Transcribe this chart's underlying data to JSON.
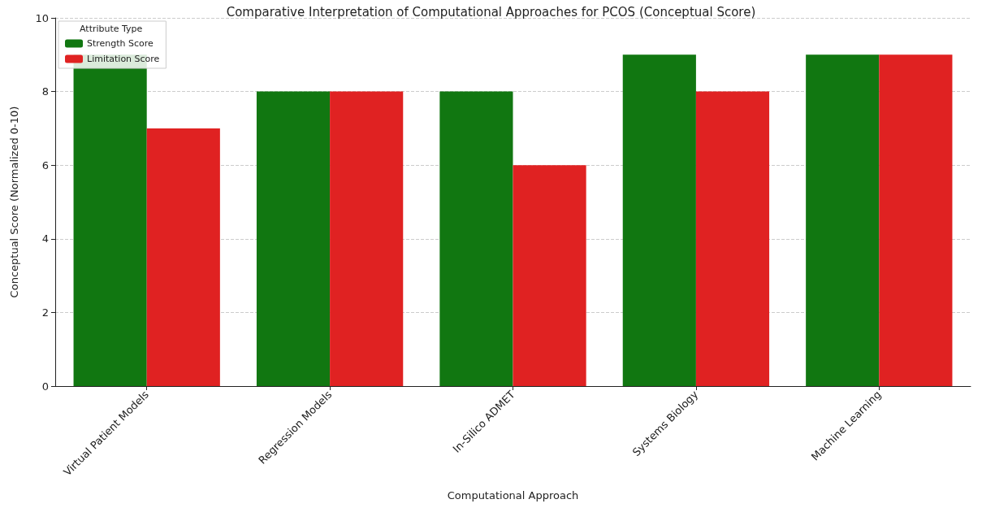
{
  "chart_data": {
    "type": "bar",
    "title": "Comparative Interpretation of Computational Approaches for PCOS (Conceptual Score)",
    "xlabel": "Computational Approach",
    "ylabel": "Conceptual Score (Normalized 0-10)",
    "legend_title": "Attribute Type",
    "categories": [
      "Virtual Patient Models",
      "Regression Models",
      "In-Silico ADMET",
      "Systems Biology",
      "Machine Learning"
    ],
    "series": [
      {
        "name": "Strength Score",
        "color": "#117711",
        "values": [
          9,
          8,
          8,
          9,
          9
        ]
      },
      {
        "name": "Limitation Score",
        "color": "#e02222",
        "values": [
          7,
          8,
          6,
          8,
          9
        ]
      }
    ],
    "ylim": [
      0,
      10
    ],
    "yticks": [
      0,
      2,
      4,
      6,
      8,
      10
    ],
    "grid": "y",
    "legend": "top left"
  }
}
